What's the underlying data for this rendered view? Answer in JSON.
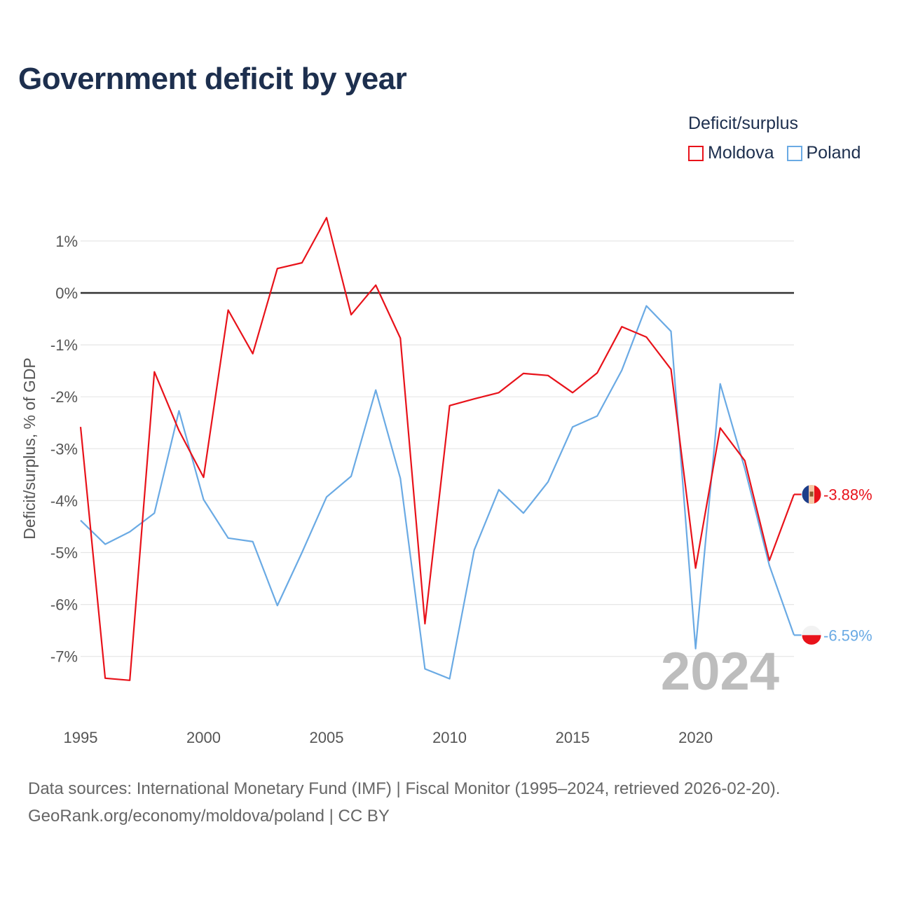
{
  "title": "Government deficit by year",
  "legend": {
    "title": "Deficit/surplus",
    "items": [
      {
        "label": "Moldova",
        "color": "#e8121a"
      },
      {
        "label": "Poland",
        "color": "#6aaae4"
      }
    ]
  },
  "footer": {
    "line1": "Data sources: International Monetary Fund (IMF) | Fiscal Monitor (1995–2024, retrieved 2026-02-20).",
    "line2": "GeoRank.org/economy/moldova/poland | CC BY"
  },
  "chart_data": {
    "type": "line",
    "title": "Government deficit by year",
    "ylabel": "Deficit/surplus, % of GDP",
    "xlabel": "",
    "ylim": [
      -8.2,
      1.5
    ],
    "xlim": [
      1995,
      2024
    ],
    "yticks": [
      1,
      0,
      -1,
      -2,
      -3,
      -4,
      -5,
      -6,
      -7
    ],
    "ytick_labels": [
      "1%",
      "0%",
      "-1%",
      "-2%",
      "-3%",
      "-4%",
      "-5%",
      "-6%",
      "-7%"
    ],
    "xticks": [
      1995,
      2000,
      2005,
      2010,
      2015,
      2020
    ],
    "xtick_labels": [
      "1995",
      "2000",
      "2005",
      "2010",
      "2015",
      "2020"
    ],
    "current_year": "2024",
    "x": [
      1995,
      1996,
      1997,
      1998,
      1999,
      2000,
      2001,
      2002,
      2003,
      2004,
      2005,
      2006,
      2007,
      2008,
      2009,
      2010,
      2011,
      2012,
      2013,
      2014,
      2015,
      2016,
      2017,
      2018,
      2019,
      2020,
      2021,
      2022,
      2023,
      2024
    ],
    "series": [
      {
        "name": "Moldova",
        "color": "#e8121a",
        "end_label": "-3.88%",
        "values": [
          -2.58,
          -7.42,
          -7.46,
          -1.52,
          -2.65,
          -3.55,
          -0.33,
          -1.17,
          0.47,
          0.58,
          1.45,
          -0.42,
          0.15,
          -0.87,
          -6.37,
          -2.17,
          -2.04,
          -1.92,
          -1.55,
          -1.59,
          -1.92,
          -1.54,
          -0.65,
          -0.85,
          -1.47,
          -5.3,
          -2.6,
          -3.23,
          -5.15,
          -3.88
        ]
      },
      {
        "name": "Poland",
        "color": "#6aaae4",
        "end_label": "-6.59%",
        "values": [
          -4.38,
          -4.84,
          -4.6,
          -4.24,
          -2.27,
          -3.98,
          -4.72,
          -4.79,
          -6.02,
          -5.0,
          -3.93,
          -3.53,
          -1.87,
          -3.57,
          -7.24,
          -7.43,
          -4.95,
          -3.79,
          -4.24,
          -3.64,
          -2.58,
          -2.37,
          -1.49,
          -0.25,
          -0.74,
          -6.85,
          -1.75,
          -3.38,
          -5.25,
          -6.59
        ]
      }
    ]
  }
}
